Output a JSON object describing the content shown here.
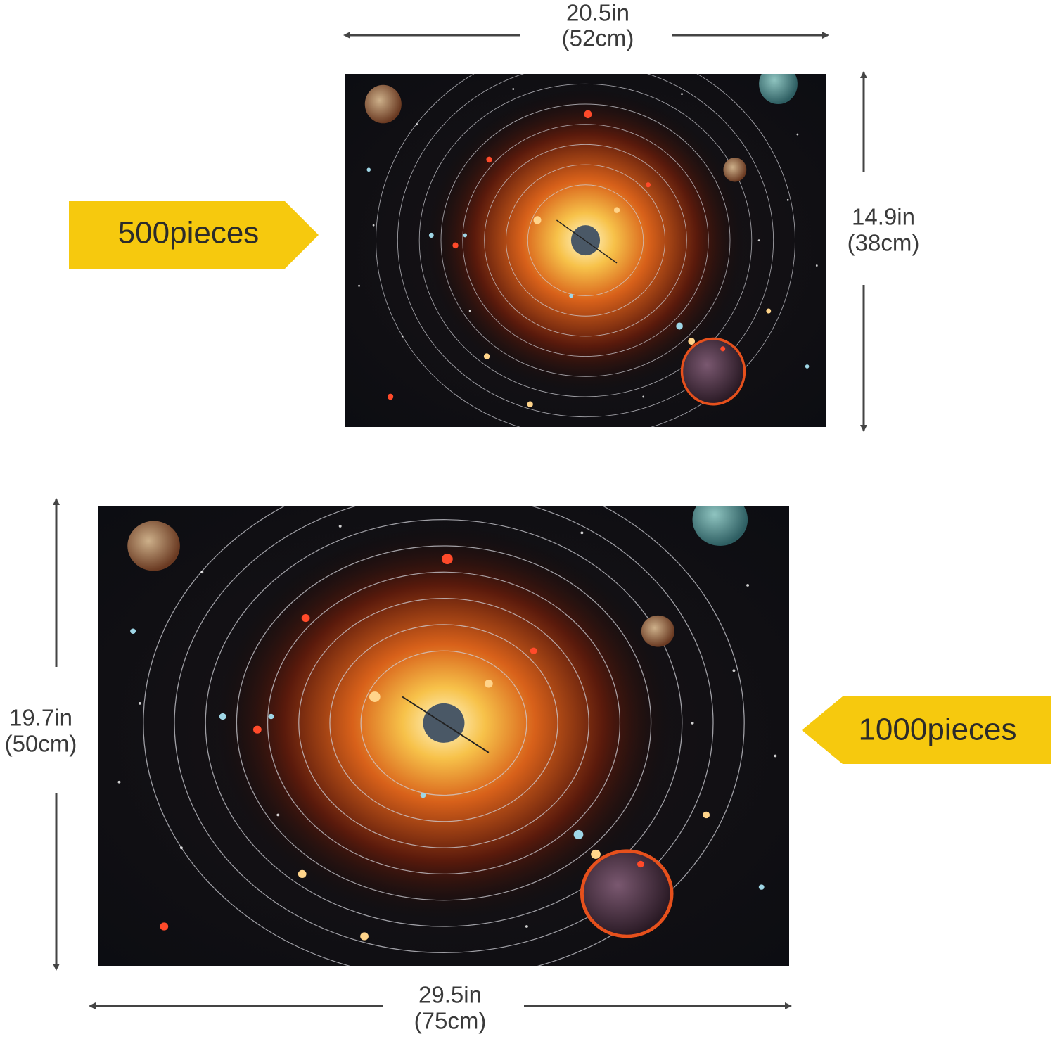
{
  "puzzles": [
    {
      "label": "500pieces",
      "width": {
        "inches": "20.5in",
        "cm": "(52cm)"
      },
      "height": {
        "inches": "14.9in",
        "cm": "(38cm)"
      }
    },
    {
      "label": "1000pieces",
      "width": {
        "inches": "29.5in",
        "cm": "(75cm)"
      },
      "height": {
        "inches": "19.7in",
        "cm": "(50cm)"
      }
    }
  ]
}
